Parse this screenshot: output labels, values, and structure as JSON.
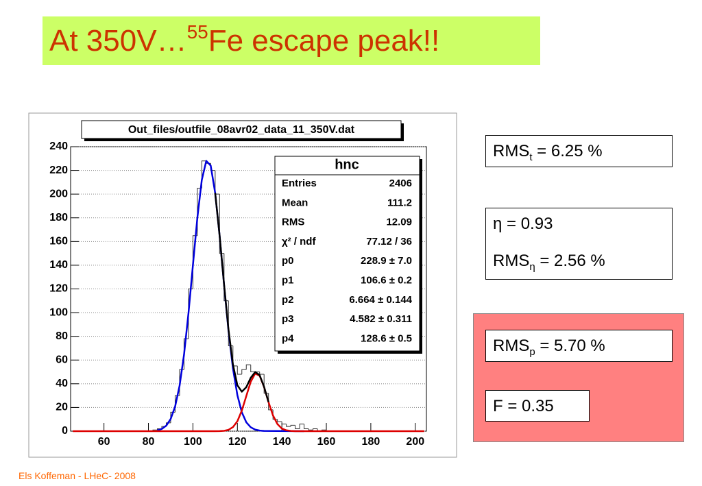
{
  "slide": {
    "title": {
      "prefix": "At 350V…",
      "sup": "55",
      "suffix": "Fe escape peak!!"
    },
    "results": [
      [
        {
          "main": "RMS",
          "sub": "t",
          "rest": " = 6.25 %"
        }
      ],
      [
        {
          "main": "η = 0.93"
        },
        {
          "main": "RMS",
          "sub": "η",
          "rest": " = 2.56 %"
        }
      ],
      [
        {
          "main": "RMS",
          "sub": "p",
          "rest": " = 5.70 %"
        }
      ],
      [
        {
          "main": "F = 0.35"
        }
      ]
    ],
    "footer": "Els Koffeman - LHeC- 2008"
  },
  "chart_data": {
    "type": "histogram",
    "title": "Out_files/outfile_08avr02_data_11_350V.dat",
    "bins": [
      80,
      82,
      84,
      86,
      88,
      90,
      92,
      94,
      96,
      98,
      100,
      102,
      104,
      106,
      108,
      110,
      112,
      114,
      116,
      118,
      120,
      122,
      124,
      126,
      128,
      130,
      132,
      134,
      136,
      138,
      140,
      142,
      144,
      146,
      148,
      150,
      152,
      154,
      156,
      158,
      160,
      162
    ],
    "values": [
      0,
      1,
      2,
      4,
      7,
      16,
      30,
      52,
      78,
      120,
      165,
      205,
      228,
      226,
      220,
      200,
      150,
      110,
      72,
      55,
      48,
      52,
      56,
      50,
      50,
      48,
      32,
      18,
      10,
      8,
      6,
      4,
      5,
      2,
      6,
      2,
      1,
      2,
      0,
      1,
      0
    ],
    "color": "#333333",
    "fit_curves": [
      {
        "color": "#0000dd",
        "x": [
          84,
          86,
          88,
          90,
          92,
          94,
          96,
          98,
          100,
          102,
          104,
          106,
          108,
          110,
          112,
          114,
          116,
          118,
          120,
          122,
          124,
          126,
          128,
          130,
          132,
          150
        ],
        "values": [
          0.7,
          1.9,
          4.6,
          10.3,
          20.8,
          38.3,
          64.5,
          99.5,
          140,
          180,
          212,
          228,
          224,
          201,
          165,
          123.5,
          84.6,
          52.9,
          30.3,
          15.9,
          7.5,
          3.3,
          1.3,
          0.5,
          0.2,
          0
        ]
      },
      {
        "color": "#dd0000",
        "x": [
          46,
          110,
          112,
          114,
          116,
          118,
          120,
          122,
          124,
          126,
          128,
          130,
          132,
          134,
          136,
          138,
          140,
          142,
          144,
          146,
          204
        ],
        "values": [
          0,
          0,
          0.07,
          0.3,
          1.1,
          3.4,
          8.4,
          17.4,
          29.6,
          41.7,
          48.6,
          46.8,
          37.2,
          24.5,
          13.3,
          6.0,
          2.2,
          0.7,
          0.2,
          0,
          0
        ]
      },
      {
        "color": "#000000",
        "x": [
          110,
          112,
          114,
          116,
          118,
          120,
          122,
          124,
          126,
          128,
          130,
          132,
          134
        ],
        "values": [
          201,
          165.1,
          123.8,
          85.7,
          56.3,
          38.7,
          33.3,
          37.1,
          45,
          49.9,
          47.3,
          37.4,
          24.5
        ]
      }
    ],
    "xlim": [
      45,
      205
    ],
    "ylim": [
      0,
      240
    ],
    "xticks": [
      60,
      80,
      100,
      120,
      140,
      160,
      180,
      200
    ],
    "yticks": [
      0,
      20,
      40,
      60,
      80,
      100,
      120,
      140,
      160,
      180,
      200,
      220,
      240
    ],
    "grid": true,
    "stats": {
      "title": "hnc",
      "rows": [
        [
          "Entries",
          "2406"
        ],
        [
          "Mean",
          "111.2"
        ],
        [
          "RMS",
          "12.09"
        ],
        [
          "χ² / ndf",
          "77.12 / 36"
        ],
        [
          "p0",
          "228.9 ± 7.0"
        ],
        [
          "p1",
          "106.6 ± 0.2"
        ],
        [
          "p2",
          "6.664 ± 0.144"
        ],
        [
          "p3",
          "4.582 ± 0.311"
        ],
        [
          "p4",
          "128.6 ± 0.5"
        ]
      ]
    }
  }
}
